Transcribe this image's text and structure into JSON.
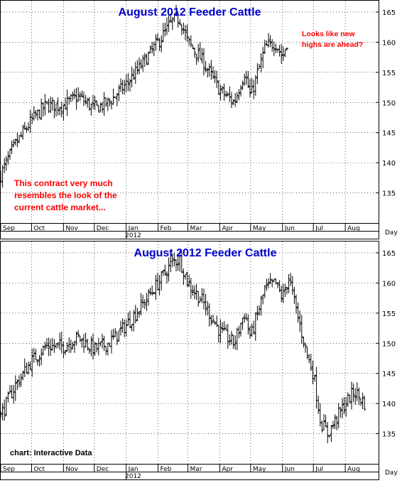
{
  "chart_data": [
    {
      "type": "bar",
      "subtype": "ohlc",
      "title": "August 2012 Feeder Cattle",
      "ylim": [
        130,
        167
      ],
      "yticks": [
        135,
        140,
        145,
        150,
        155,
        160,
        165
      ],
      "ytick_labels": [
        "135",
        "140",
        "145",
        "150",
        "155",
        "160",
        "165"
      ],
      "x_axis_label": "Day",
      "x_month_labels": [
        "Sep",
        "Oct",
        "Nov",
        "Dec",
        "Jan",
        "Feb",
        "Mar",
        "Apr",
        "May",
        "Jun",
        "Jul",
        "Aug"
      ],
      "x_year_label": "2012",
      "grid": "dotted",
      "annotations": [
        {
          "lines": [
            "This contract very much",
            "resembles the look of the",
            "current cattle market..."
          ]
        },
        {
          "lines": [
            "Looks like new",
            "highs are ahead?"
          ]
        }
      ],
      "x": [
        "2011-09-01",
        "2011-09-15",
        "2011-10-01",
        "2011-10-15",
        "2011-11-01",
        "2011-11-15",
        "2011-12-01",
        "2011-12-15",
        "2012-01-01",
        "2012-01-15",
        "2012-02-01",
        "2012-02-15",
        "2012-02-22",
        "2012-03-01",
        "2012-03-15",
        "2012-04-01",
        "2012-04-15",
        "2012-04-25",
        "2012-05-01",
        "2012-05-15",
        "2012-05-25",
        "2012-06-01",
        "2012-06-07"
      ],
      "close": [
        138,
        143,
        147,
        149.5,
        149.5,
        151,
        149,
        150,
        153,
        156,
        160,
        163.5,
        164,
        160,
        157,
        152,
        150,
        155,
        151,
        159,
        160,
        157.5,
        161
      ]
    },
    {
      "type": "bar",
      "subtype": "ohlc",
      "title": "August 2012 Feeder Cattle",
      "ylim": [
        130,
        167
      ],
      "yticks": [
        135,
        140,
        145,
        150,
        155,
        160,
        165
      ],
      "ytick_labels": [
        "135",
        "140",
        "145",
        "150",
        "155",
        "160",
        "165"
      ],
      "x_axis_label": "Day",
      "x_month_labels": [
        "Sep",
        "Oct",
        "Nov",
        "Dec",
        "Jan",
        "Feb",
        "Mar",
        "Apr",
        "May",
        "Jun",
        "Jul",
        "Aug"
      ],
      "x_year_label": "2012",
      "grid": "dotted",
      "credit": "chart: Interactive Data",
      "x": [
        "2011-09-01",
        "2011-09-15",
        "2011-10-01",
        "2011-10-15",
        "2011-11-01",
        "2011-11-15",
        "2011-12-01",
        "2011-12-15",
        "2012-01-01",
        "2012-01-15",
        "2012-02-01",
        "2012-02-15",
        "2012-02-22",
        "2012-03-01",
        "2012-03-15",
        "2012-04-01",
        "2012-04-15",
        "2012-04-25",
        "2012-05-01",
        "2012-05-15",
        "2012-05-25",
        "2012-06-01",
        "2012-06-07",
        "2012-06-15",
        "2012-06-25",
        "2012-07-01",
        "2012-07-08",
        "2012-07-15",
        "2012-07-25",
        "2012-08-01",
        "2012-08-10",
        "2012-08-20"
      ],
      "close": [
        138,
        143,
        147,
        149.5,
        149.5,
        151,
        149,
        150,
        153,
        156,
        160,
        163.5,
        164,
        160,
        157,
        152,
        150,
        155,
        151,
        159,
        160,
        157.5,
        161,
        155,
        148,
        145,
        137,
        135,
        138,
        140,
        142,
        140
      ]
    }
  ]
}
